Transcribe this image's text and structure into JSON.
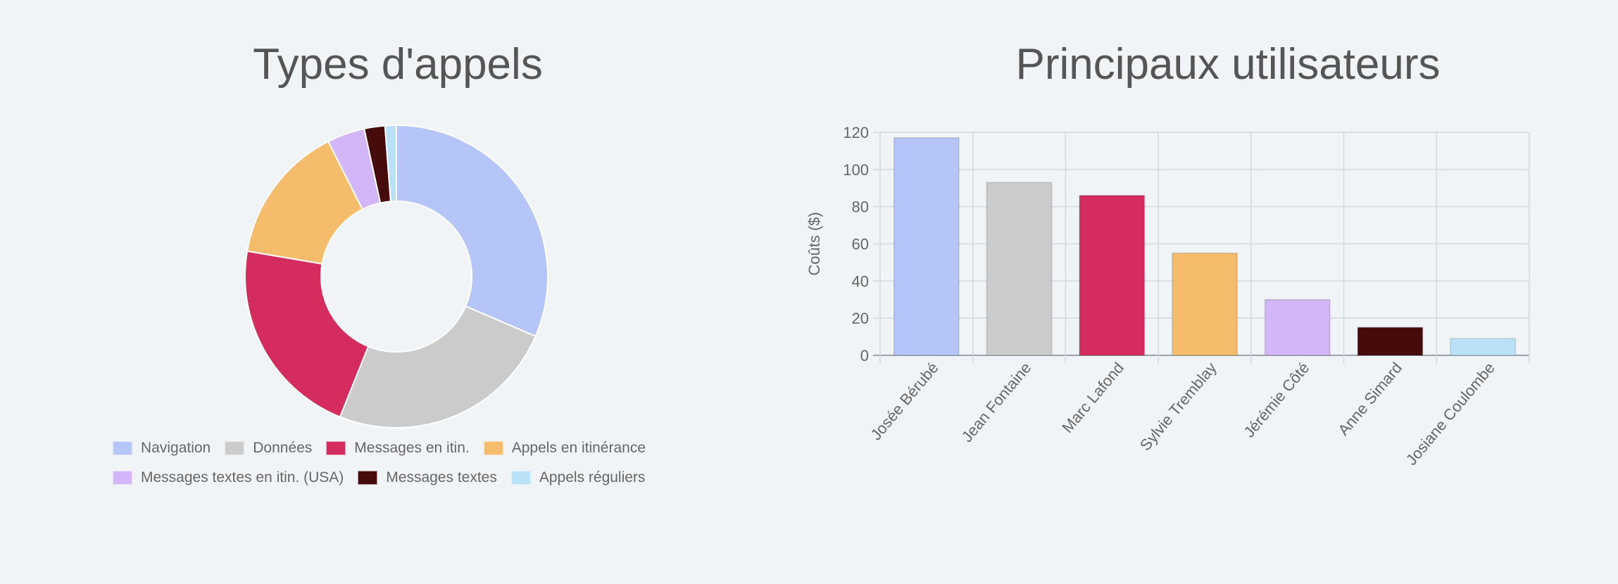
{
  "chart_data": [
    {
      "type": "pie",
      "variant": "doughnut",
      "title": "Types d'appels",
      "legend_position": "bottom",
      "categories": [
        "Navigation",
        "Données",
        "Messages en itin.",
        "Appels en itinérance",
        "Messages textes en itin. (USA)",
        "Messages textes",
        "Appels réguliers"
      ],
      "values": [
        31.3,
        24.5,
        21.5,
        14.8,
        4.0,
        2.2,
        1.2
      ],
      "colors": [
        "#b5c5f8",
        "#cbcbcb",
        "#d42c5e",
        "#f5bc6b",
        "#d3b6f8",
        "#460c0c",
        "#b9e2f8"
      ]
    },
    {
      "type": "bar",
      "title": "Principaux utilisateurs",
      "xlabel": "",
      "ylabel": "Coûts ($)",
      "ylim": [
        0,
        120
      ],
      "yticks": [
        0,
        20,
        40,
        60,
        80,
        100,
        120
      ],
      "grid": true,
      "categories": [
        "Josée Bérubé",
        "Jean Fontaine",
        "Marc Lafond",
        "Sylvie Tremblay",
        "Jérémie Côté",
        "Anne Simard",
        "Josiane Coulombe"
      ],
      "values": [
        117,
        93,
        86,
        55,
        30,
        15,
        9
      ],
      "colors": [
        "#b5c5f8",
        "#cbcbcb",
        "#d42c5e",
        "#f5bc6b",
        "#d3b6f8",
        "#460c0c",
        "#b9e2f8"
      ]
    }
  ]
}
